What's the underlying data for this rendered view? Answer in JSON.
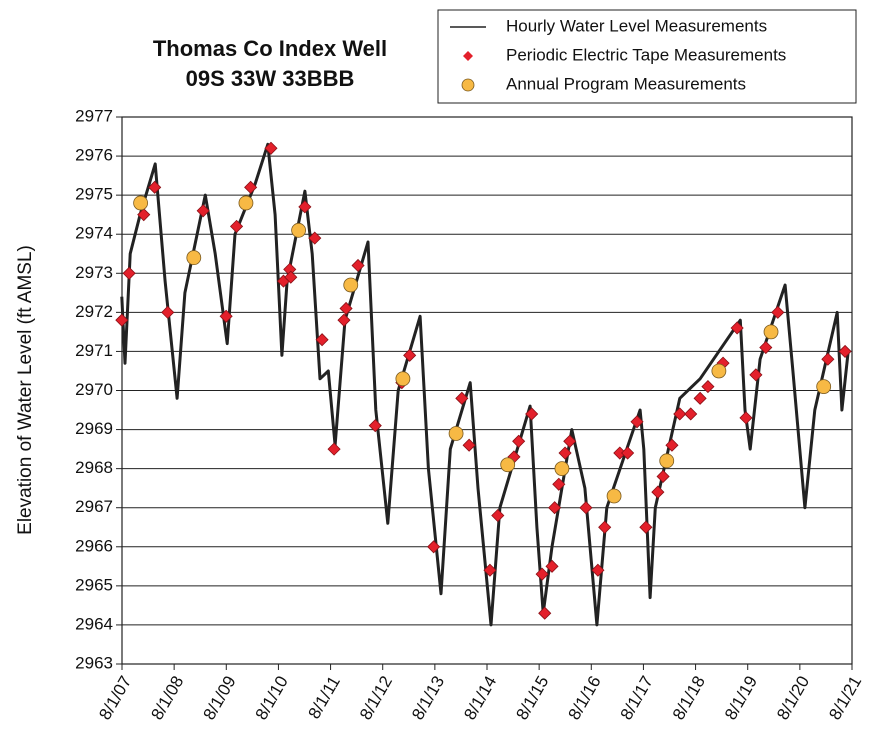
{
  "chart_data": {
    "type": "line",
    "title": "Thomas Co Index Well",
    "subtitle": "09S 33W 33BBB",
    "ylabel": "Elevation of Water Level (ft AMSL)",
    "xlim": [
      2007.583,
      2021.583
    ],
    "ylim": [
      2963,
      2977
    ],
    "yticks": [
      2963,
      2964,
      2965,
      2966,
      2967,
      2968,
      2969,
      2970,
      2971,
      2972,
      2973,
      2974,
      2975,
      2976,
      2977
    ],
    "xticks": [
      {
        "value": 2007.583,
        "label": "8/1/07"
      },
      {
        "value": 2008.583,
        "label": "8/1/08"
      },
      {
        "value": 2009.583,
        "label": "8/1/09"
      },
      {
        "value": 2010.583,
        "label": "8/1/10"
      },
      {
        "value": 2011.583,
        "label": "8/1/11"
      },
      {
        "value": 2012.583,
        "label": "8/1/12"
      },
      {
        "value": 2013.583,
        "label": "8/1/13"
      },
      {
        "value": 2014.583,
        "label": "8/1/14"
      },
      {
        "value": 2015.583,
        "label": "8/1/15"
      },
      {
        "value": 2016.583,
        "label": "8/1/16"
      },
      {
        "value": 2017.583,
        "label": "8/1/17"
      },
      {
        "value": 2018.583,
        "label": "8/1/18"
      },
      {
        "value": 2019.583,
        "label": "8/1/19"
      },
      {
        "value": 2020.583,
        "label": "8/1/20"
      },
      {
        "value": 2021.583,
        "label": "8/1/21"
      }
    ],
    "grid": true,
    "legend": "top-right",
    "series": [
      {
        "name": "Hourly Water Level Measurements",
        "type": "line",
        "color": "#222222",
        "x": [
          2007.58,
          2007.64,
          2007.74,
          2007.93,
          2008.22,
          2008.41,
          2008.64,
          2008.79,
          2009.18,
          2009.37,
          2009.6,
          2009.75,
          2010.14,
          2010.38,
          2010.52,
          2010.65,
          2010.75,
          2011.09,
          2011.23,
          2011.38,
          2011.54,
          2011.67,
          2011.86,
          2012.3,
          2012.45,
          2012.68,
          2012.88,
          2013.3,
          2013.46,
          2013.7,
          2013.88,
          2014.26,
          2014.41,
          2014.66,
          2014.83,
          2015.41,
          2015.54,
          2015.66,
          2015.83,
          2016.21,
          2016.46,
          2016.69,
          2016.88,
          2017.52,
          2017.59,
          2017.71,
          2017.81,
          2018.28,
          2018.67,
          2019.44,
          2019.53,
          2019.63,
          2019.82,
          2020.3,
          2020.45,
          2020.68,
          2020.87,
          2021.3,
          2021.39,
          2021.51
        ],
        "values": [
          2972.4,
          2970.7,
          2973.5,
          2974.5,
          2975.8,
          2972.8,
          2969.8,
          2972.5,
          2975.0,
          2973.5,
          2971.2,
          2974.0,
          2975.3,
          2976.3,
          2974.5,
          2970.9,
          2972.8,
          2975.1,
          2973.5,
          2970.3,
          2970.5,
          2968.6,
          2971.8,
          2973.8,
          2969.5,
          2966.6,
          2970.0,
          2971.9,
          2968.0,
          2964.8,
          2968.5,
          2970.2,
          2967.5,
          2964.0,
          2967.0,
          2969.6,
          2966.5,
          2964.3,
          2966.0,
          2969.0,
          2967.5,
          2964.0,
          2967.0,
          2969.5,
          2968.5,
          2964.7,
          2967.0,
          2969.8,
          2970.3,
          2971.8,
          2969.5,
          2968.5,
          2970.8,
          2972.7,
          2970.5,
          2967.0,
          2969.5,
          2972.0,
          2969.5,
          2971.0
        ]
      },
      {
        "name": "Periodic Electric Tape Measurements",
        "type": "scatter",
        "marker": "diamond",
        "color": "#e3202b",
        "x": [
          2007.58,
          2007.72,
          2008.0,
          2008.21,
          2008.46,
          2009.14,
          2009.58,
          2009.78,
          2010.05,
          2010.44,
          2010.68,
          2010.8,
          2010.82,
          2011.09,
          2011.28,
          2011.42,
          2011.65,
          2011.84,
          2011.88,
          2012.11,
          2012.44,
          2012.95,
          2013.1,
          2013.56,
          2014.1,
          2014.24,
          2014.64,
          2014.79,
          2015.1,
          2015.19,
          2015.44,
          2015.64,
          2015.69,
          2015.83,
          2015.88,
          2015.96,
          2016.08,
          2016.17,
          2016.48,
          2016.71,
          2016.84,
          2017.13,
          2017.28,
          2017.46,
          2017.63,
          2017.86,
          2017.96,
          2018.13,
          2018.28,
          2018.49,
          2018.67,
          2018.82,
          2019.11,
          2019.38,
          2019.55,
          2019.74,
          2019.93,
          2020.16,
          2021.12,
          2021.45
        ],
        "values": [
          2971.8,
          2973.0,
          2974.5,
          2975.2,
          2972.0,
          2974.6,
          2971.9,
          2974.2,
          2975.2,
          2976.2,
          2972.8,
          2973.1,
          2972.9,
          2974.7,
          2973.9,
          2971.3,
          2968.5,
          2971.8,
          2972.1,
          2973.2,
          2969.1,
          2970.2,
          2970.9,
          2966.0,
          2969.8,
          2968.6,
          2965.4,
          2966.8,
          2968.3,
          2968.7,
          2969.4,
          2965.3,
          2964.3,
          2965.5,
          2967.0,
          2967.6,
          2968.4,
          2968.7,
          2967.0,
          2965.4,
          2966.5,
          2968.4,
          2968.4,
          2969.2,
          2966.5,
          2967.4,
          2967.8,
          2968.6,
          2969.4,
          2969.4,
          2969.8,
          2970.1,
          2970.7,
          2971.6,
          2969.3,
          2970.4,
          2971.1,
          2972.0,
          2970.8,
          2971.0
        ]
      },
      {
        "name": "Annual Program Measurements",
        "type": "scatter",
        "marker": "circle",
        "color": "#f7b944",
        "x": [
          2007.94,
          2008.96,
          2009.96,
          2010.97,
          2011.97,
          2012.97,
          2013.99,
          2014.98,
          2016.02,
          2017.02,
          2018.03,
          2019.03,
          2020.03,
          2021.04
        ],
        "values": [
          2974.8,
          2973.4,
          2974.8,
          2974.1,
          2972.7,
          2970.3,
          2968.9,
          2968.1,
          2968.0,
          2967.3,
          2968.2,
          2970.5,
          2971.5,
          2970.1
        ]
      }
    ]
  }
}
